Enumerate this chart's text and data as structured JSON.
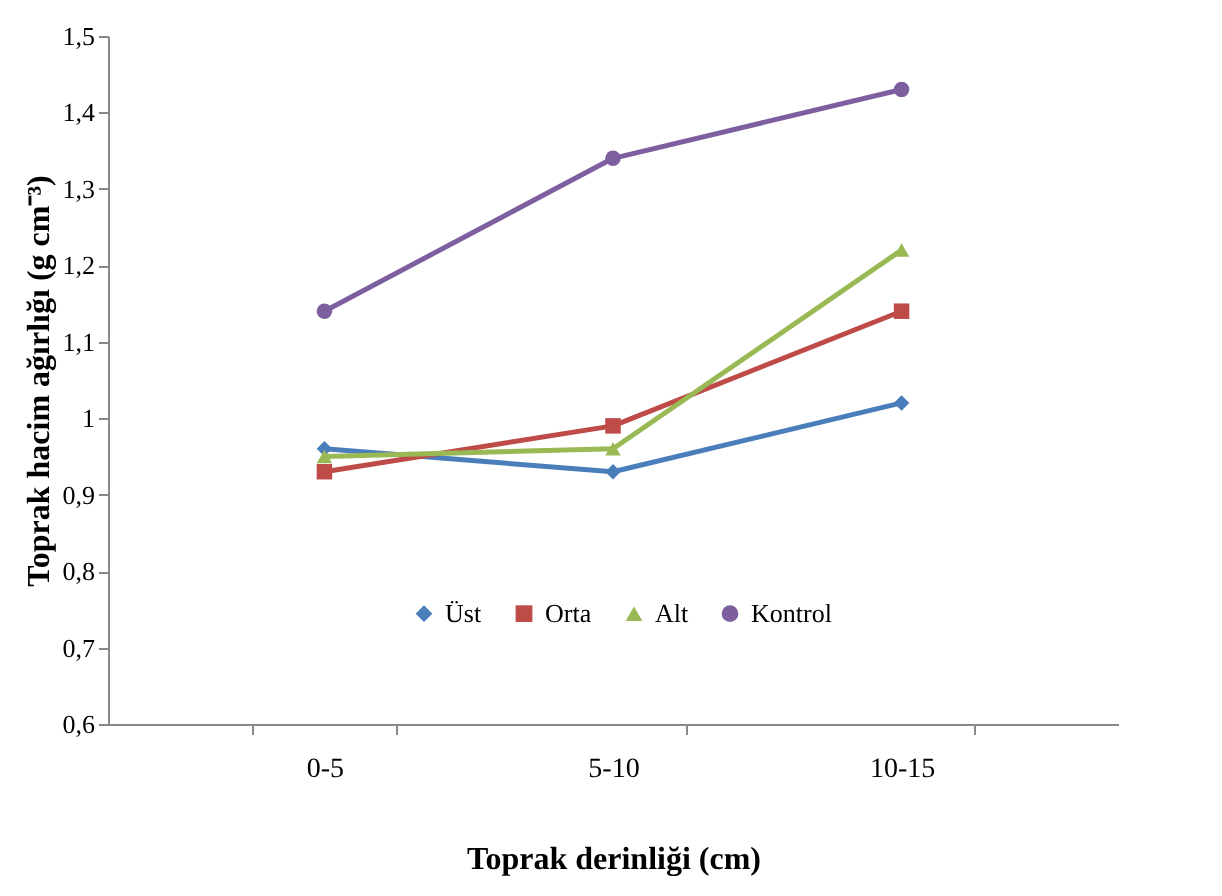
{
  "chart_data": {
    "type": "line",
    "xlabel": "Toprak derinliği (cm)",
    "ylabel": "Toprak hacim ağırlığı (g cm⁻³)",
    "categories": [
      "0-5",
      "5-10",
      "10-15"
    ],
    "series": [
      {
        "name": "Üst",
        "color": "#4a7ebb",
        "marker": "diamond",
        "values": [
          0.96,
          0.93,
          1.02
        ]
      },
      {
        "name": "Orta",
        "color": "#be4b48",
        "marker": "square",
        "values": [
          0.93,
          0.99,
          1.14
        ]
      },
      {
        "name": "Alt",
        "color": "#98b954",
        "marker": "triangle",
        "values": [
          0.95,
          0.96,
          1.22
        ]
      },
      {
        "name": "Kontrol",
        "color": "#7d5fa0",
        "marker": "circle",
        "values": [
          1.14,
          1.34,
          1.43
        ]
      }
    ],
    "ylim": [
      0.6,
      1.5
    ],
    "yticks": [
      {
        "value": 0.6,
        "label": "0,6"
      },
      {
        "value": 0.7,
        "label": "0,7"
      },
      {
        "value": 0.8,
        "label": "0,8"
      },
      {
        "value": 0.9,
        "label": "0,9"
      },
      {
        "value": 1,
        "label": "1"
      },
      {
        "value": 1.1,
        "label": "1,1"
      },
      {
        "value": 1.2,
        "label": "1,2"
      },
      {
        "value": 1.3,
        "label": "1,3"
      },
      {
        "value": 1.4,
        "label": "1,4"
      },
      {
        "value": 1.5,
        "label": "1,5"
      }
    ],
    "grid": false,
    "legend": "bottom",
    "line_style": "solid"
  }
}
